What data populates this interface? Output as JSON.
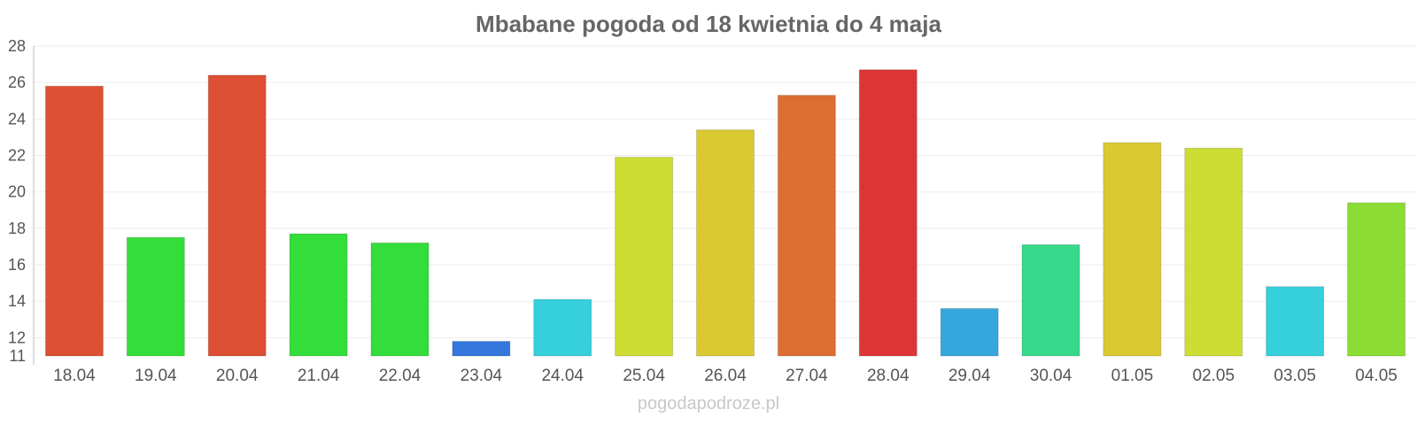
{
  "chart_data": {
    "type": "bar",
    "title": "Mbabane pogoda od 18 kwietnia do 4 maja",
    "xlabel": "",
    "ylabel": "",
    "ylim": [
      11,
      28
    ],
    "yticks": [
      11,
      12,
      14,
      16,
      18,
      20,
      22,
      24,
      26,
      28
    ],
    "grid": true,
    "categories": [
      "18.04",
      "19.04",
      "20.04",
      "21.04",
      "22.04",
      "23.04",
      "24.04",
      "25.04",
      "26.04",
      "27.04",
      "28.04",
      "29.04",
      "30.04",
      "01.05",
      "02.05",
      "03.05",
      "04.05"
    ],
    "values": [
      25.8,
      17.5,
      26.4,
      17.7,
      17.2,
      11.8,
      14.1,
      21.9,
      23.4,
      25.3,
      26.7,
      13.6,
      17.1,
      22.7,
      22.4,
      14.8,
      19.4
    ],
    "colors": [
      "#dd5033",
      "#33dd3a",
      "#dd5033",
      "#33dd3a",
      "#33dd3a",
      "#3377dd",
      "#36cfdc",
      "#cddd33",
      "#dbc933",
      "#dd6e33",
      "#dd3535",
      "#36a7dc",
      "#36d98a",
      "#dbc933",
      "#cddd33",
      "#36cfdc",
      "#8cdd33"
    ]
  },
  "watermark": "pogodapodroze.pl"
}
